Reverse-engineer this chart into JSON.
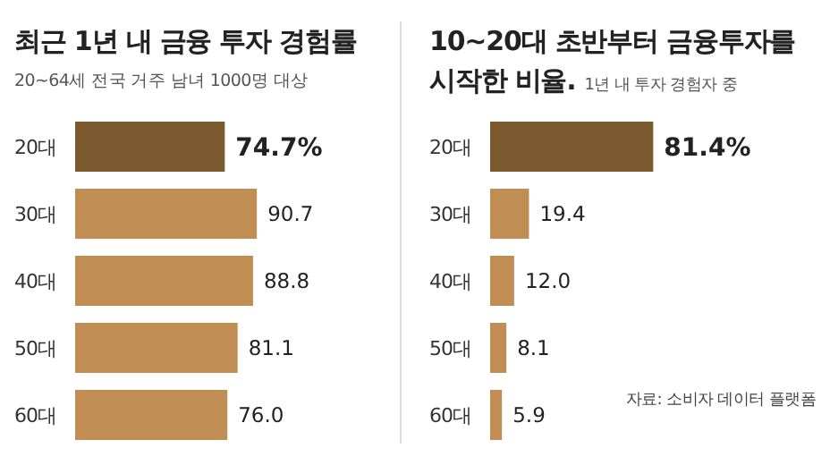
{
  "chart_data": [
    {
      "type": "bar",
      "orientation": "horizontal",
      "title": "최근 1년 내 금융 투자 경험률",
      "subtitle": "20~64세 전국 거주 남녀 1000명 대상",
      "categories": [
        "20대",
        "30대",
        "40대",
        "50대",
        "60대"
      ],
      "values": [
        74.7,
        90.7,
        88.8,
        81.1,
        76.0
      ],
      "colors": [
        "#7a5a2e",
        "#c08e52",
        "#c08e52",
        "#c08e52",
        "#c08e52"
      ],
      "value_labels": [
        "74.7%",
        "90.7",
        "88.8",
        "81.1",
        "76.0"
      ]
    },
    {
      "type": "bar",
      "orientation": "horizontal",
      "title": "10~20대 초반부터 금융투자를 시작한 비율.",
      "subtitle": "1년 내 투자 경험자 중",
      "categories": [
        "20대",
        "30대",
        "40대",
        "50대",
        "60대"
      ],
      "values": [
        81.4,
        19.4,
        12.0,
        8.1,
        5.9
      ],
      "colors": [
        "#7a5a2e",
        "#c08e52",
        "#c08e52",
        "#c08e52",
        "#c08e52"
      ],
      "value_labels": [
        "81.4%",
        "19.4",
        "12.0",
        "8.1",
        "5.9"
      ],
      "annotations": [
        "자료: 소비자 데이터 플랫폼"
      ]
    }
  ]
}
